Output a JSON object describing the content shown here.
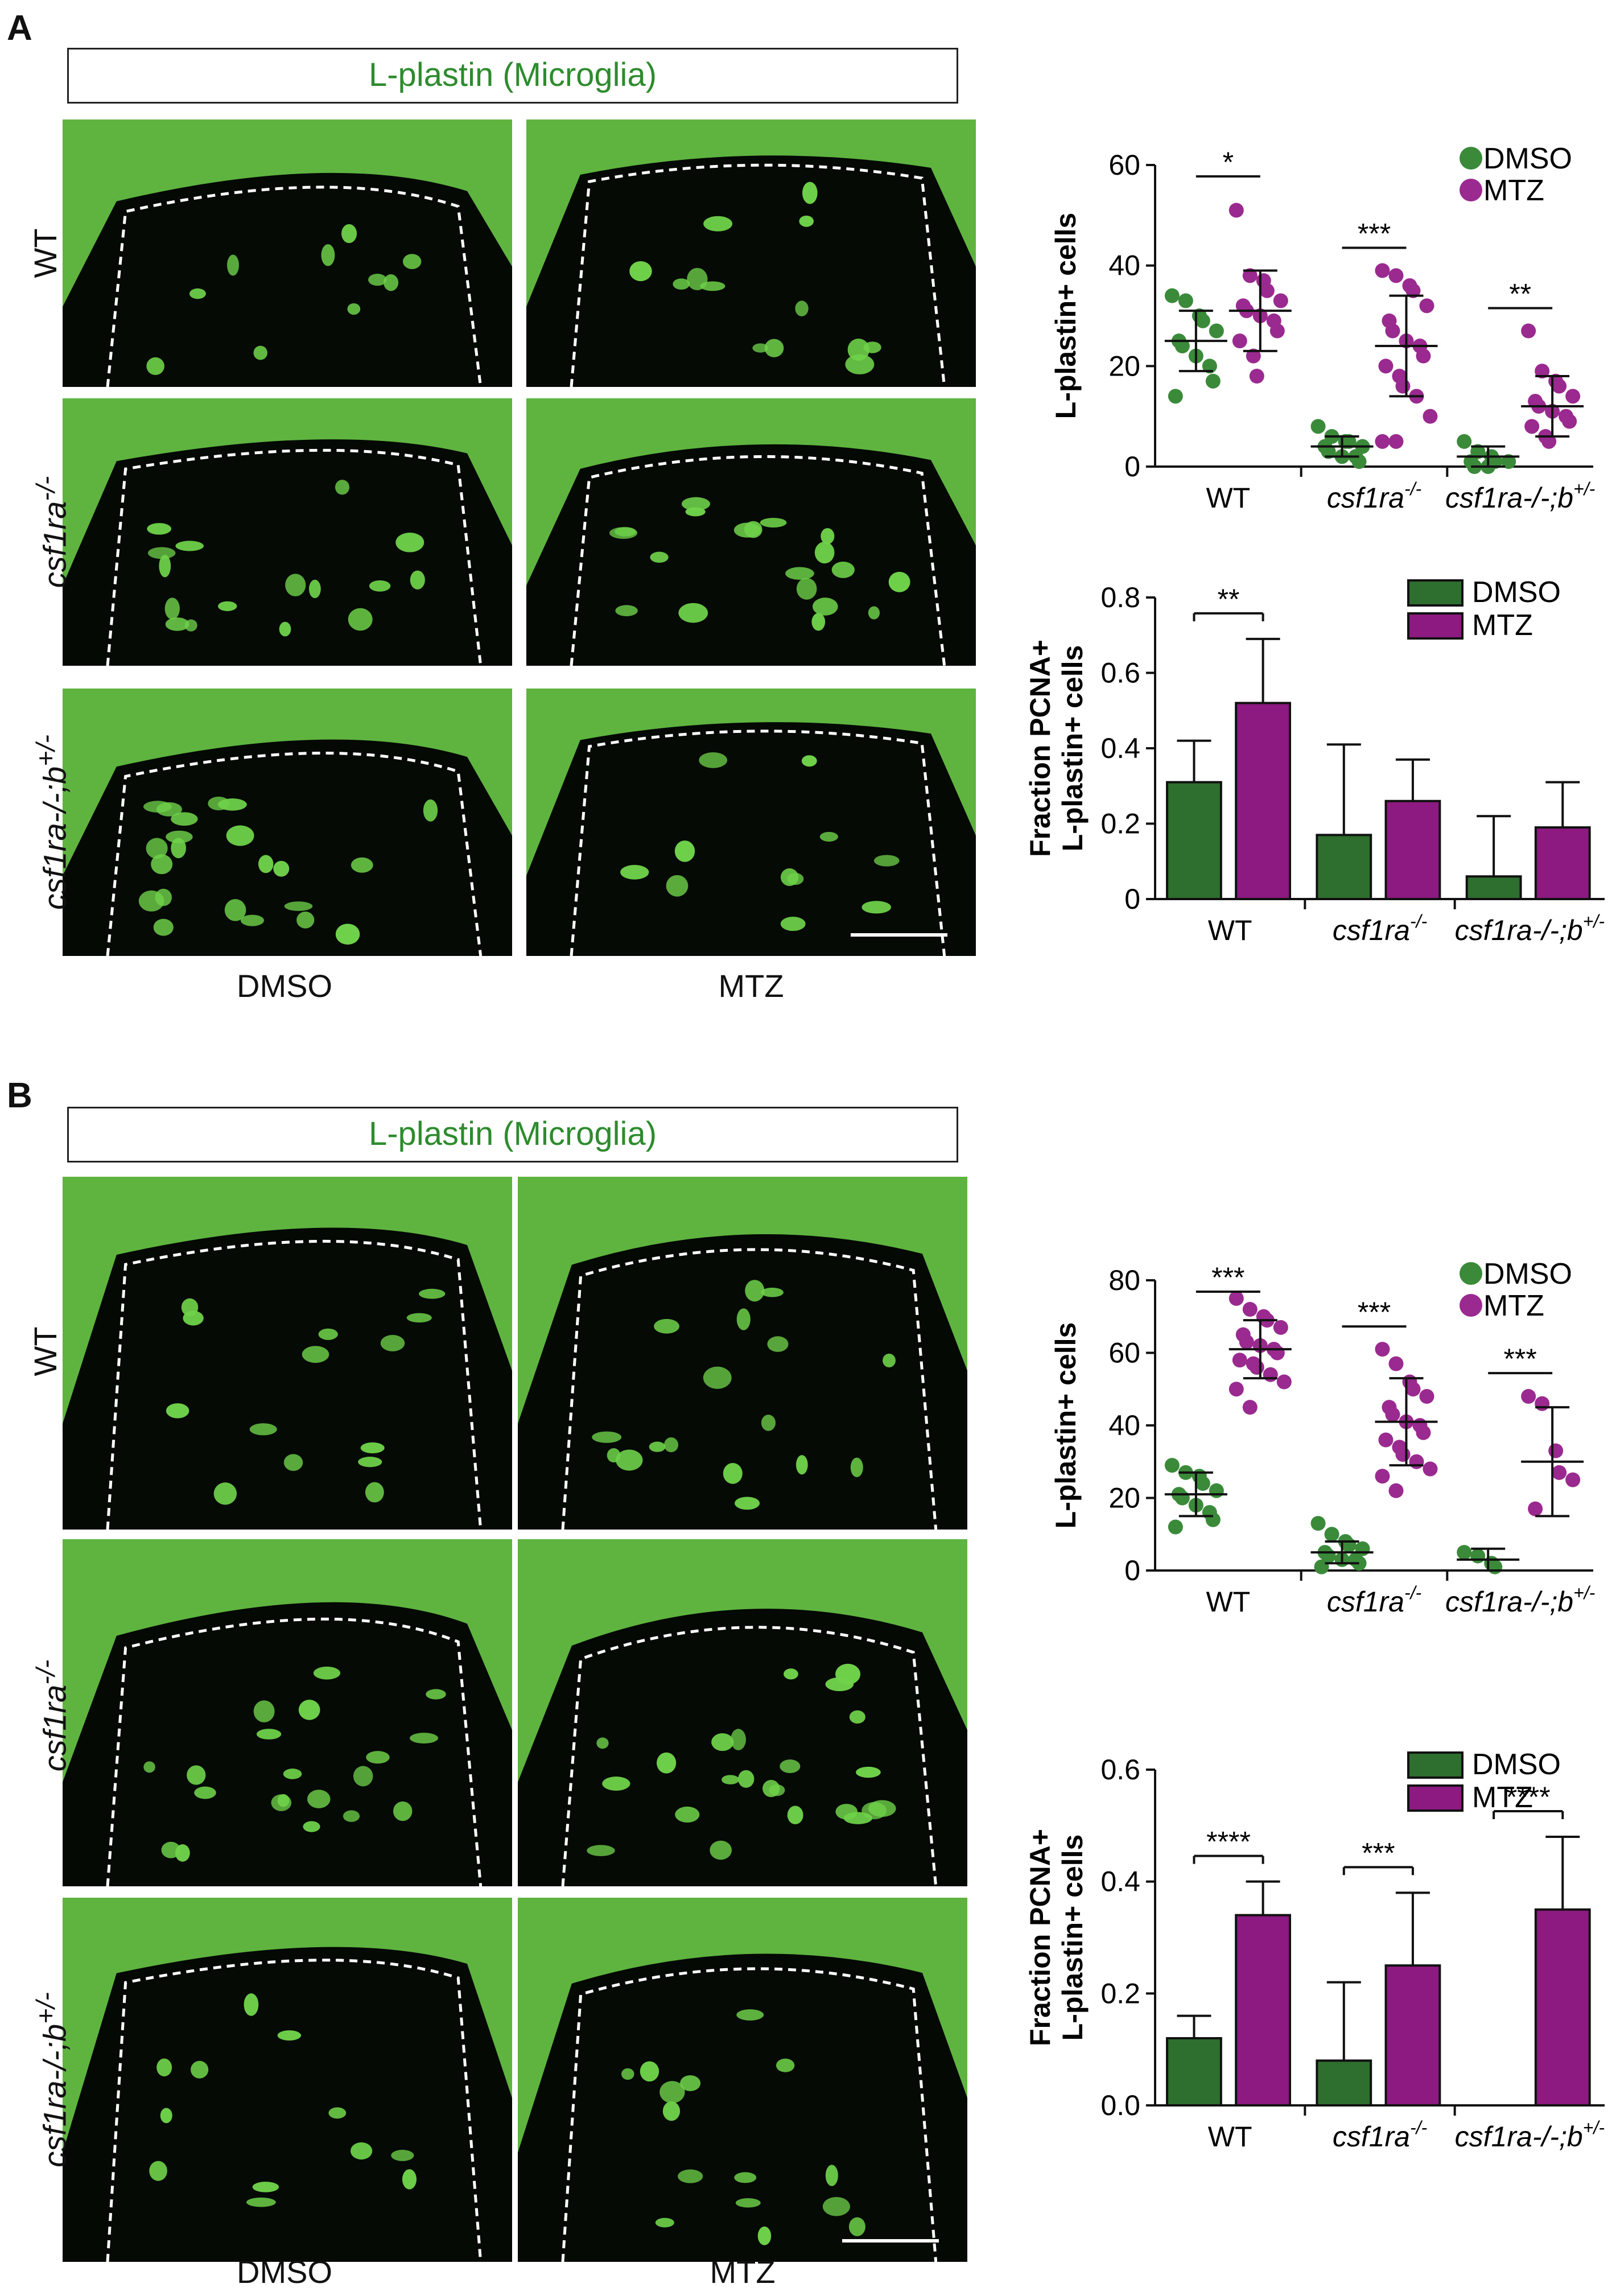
{
  "panels": [
    {
      "letter": "A",
      "title": "L-plastin (Microglia)",
      "rows": [
        {
          "label": "WT",
          "sup": ""
        },
        {
          "label": "csf1ra",
          "sup": "-/-"
        },
        {
          "label": "csf1ra-/-;b",
          "sup": "+/-"
        }
      ],
      "columns": [
        "DMSO",
        "MTZ"
      ]
    },
    {
      "letter": "B",
      "title": "L-plastin (Microglia)",
      "rows": [
        {
          "label": "WT",
          "sup": ""
        },
        {
          "label": "csf1ra",
          "sup": "-/-"
        },
        {
          "label": "csf1ra-/-;b",
          "sup": "+/-"
        }
      ],
      "columns": [
        "DMSO",
        "MTZ"
      ]
    }
  ],
  "colors": {
    "dmso": "#2e6e2e",
    "mtz": "#8c1a80",
    "dmso_dot": "#3a8a3a",
    "mtz_dot": "#9a2a8f",
    "micro_green": "#6fd24a"
  },
  "chart_data": [
    {
      "type": "scatter",
      "panel": "A",
      "ylabel": "L-plastin+ cells",
      "ylim": [
        0,
        60
      ],
      "yticks": [
        0,
        20,
        40,
        60
      ],
      "categories": [
        "WT",
        "csf1ra-/-",
        "csf1ra-/-;b+/-"
      ],
      "legend": [
        "DMSO",
        "MTZ"
      ],
      "series": [
        {
          "name": "DMSO",
          "mean": [
            25,
            4,
            2
          ],
          "sd": [
            6,
            2,
            2
          ],
          "points": [
            [
              34,
              33,
              30,
              29,
              27,
              25,
              24,
              22,
              20,
              17,
              14
            ],
            [
              8,
              6,
              5,
              5,
              4,
              4,
              3,
              2,
              2,
              1
            ],
            [
              5,
              3,
              2,
              1,
              1,
              1,
              0,
              0
            ]
          ]
        },
        {
          "name": "MTZ",
          "mean": [
            31,
            24,
            12
          ],
          "sd": [
            8,
            10,
            6
          ],
          "points": [
            [
              51,
              38,
              37,
              35,
              33,
              32,
              31,
              30,
              29,
              27,
              25,
              22,
              18
            ],
            [
              39,
              38,
              36,
              35,
              32,
              29,
              27,
              25,
              24,
              22,
              20,
              18,
              16,
              14,
              10,
              5,
              5
            ],
            [
              27,
              19,
              17,
              16,
              14,
              13,
              12,
              11,
              10,
              9,
              8,
              6,
              5
            ]
          ]
        }
      ],
      "significance": [
        "*",
        "***",
        "**"
      ]
    },
    {
      "type": "bar",
      "panel": "A",
      "ylabel": "Fraction PCNA+ L-plastin+ cells",
      "ylim": [
        0,
        0.8
      ],
      "yticks": [
        0,
        0.2,
        0.4,
        0.6,
        0.8
      ],
      "categories": [
        "WT",
        "csf1ra-/-",
        "csf1ra-/-;b+/-"
      ],
      "legend": [
        "DMSO",
        "MTZ"
      ],
      "series": [
        {
          "name": "DMSO",
          "values": [
            0.31,
            0.17,
            0.06
          ],
          "err": [
            0.11,
            0.24,
            0.16
          ]
        },
        {
          "name": "MTZ",
          "values": [
            0.52,
            0.26,
            0.19
          ],
          "err": [
            0.17,
            0.11,
            0.12
          ]
        }
      ],
      "significance": [
        {
          "group": 0,
          "label": "**"
        }
      ]
    },
    {
      "type": "scatter",
      "panel": "B",
      "ylabel": "L-plastin+ cells",
      "ylim": [
        0,
        80
      ],
      "yticks": [
        0,
        20,
        40,
        60,
        80
      ],
      "categories": [
        "WT",
        "csf1ra-/-",
        "csf1ra-/-;b+/-"
      ],
      "legend": [
        "DMSO",
        "MTZ"
      ],
      "series": [
        {
          "name": "DMSO",
          "mean": [
            21,
            5,
            3
          ],
          "sd": [
            6,
            3,
            3
          ],
          "points": [
            [
              29,
              27,
              26,
              24,
              22,
              21,
              20,
              18,
              16,
              14,
              12
            ],
            [
              13,
              10,
              8,
              7,
              6,
              5,
              4,
              3,
              3,
              2,
              1
            ],
            [
              5,
              4,
              2,
              1
            ]
          ]
        },
        {
          "name": "MTZ",
          "mean": [
            61,
            41,
            30
          ],
          "sd": [
            8,
            12,
            15
          ],
          "points": [
            [
              75,
              72,
              70,
              69,
              67,
              65,
              63,
              62,
              61,
              60,
              58,
              57,
              56,
              54,
              52,
              50,
              45
            ],
            [
              61,
              57,
              52,
              50,
              48,
              45,
              43,
              41,
              40,
              38,
              36,
              34,
              32,
              30,
              28,
              26,
              22
            ],
            [
              48,
              46,
              33,
              27,
              25,
              17
            ]
          ]
        }
      ],
      "significance": [
        "***",
        "***",
        "***"
      ]
    },
    {
      "type": "bar",
      "panel": "B",
      "ylabel": "Fraction PCNA+ L-plastin+ cells",
      "ylim": [
        0,
        0.6
      ],
      "yticks": [
        0.0,
        0.2,
        0.4,
        0.6
      ],
      "categories": [
        "WT",
        "csf1ra-/-",
        "csf1ra-/-;b+/-"
      ],
      "legend": [
        "DMSO",
        "MTZ"
      ],
      "series": [
        {
          "name": "DMSO",
          "values": [
            0.12,
            0.08,
            0
          ],
          "err": [
            0.04,
            0.14,
            0
          ]
        },
        {
          "name": "MTZ",
          "values": [
            0.34,
            0.25,
            0.35
          ],
          "err": [
            0.06,
            0.13,
            0.13
          ]
        }
      ],
      "significance": [
        {
          "group": 0,
          "label": "****"
        },
        {
          "group": 1,
          "label": "***"
        },
        {
          "group": 2,
          "label": "****"
        }
      ]
    }
  ]
}
